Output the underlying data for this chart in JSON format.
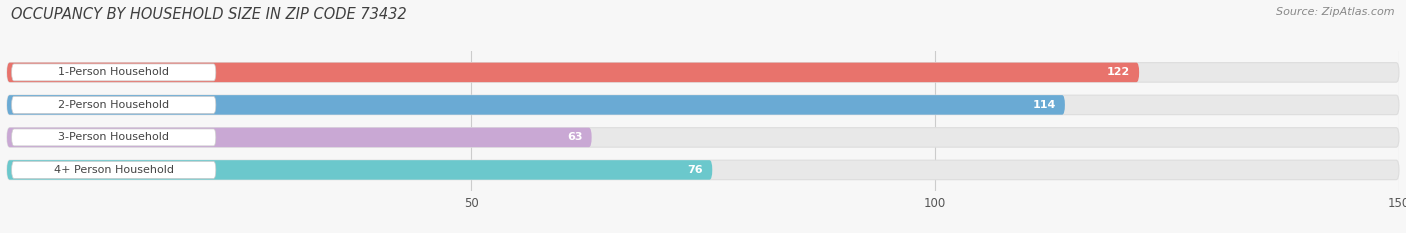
{
  "title": "OCCUPANCY BY HOUSEHOLD SIZE IN ZIP CODE 73432",
  "source": "Source: ZipAtlas.com",
  "categories": [
    "1-Person Household",
    "2-Person Household",
    "3-Person Household",
    "4+ Person Household"
  ],
  "values": [
    122,
    114,
    63,
    76
  ],
  "bar_colors": [
    "#e8736c",
    "#6aaad4",
    "#c9a8d4",
    "#6bc8cc"
  ],
  "xlim": [
    0,
    150
  ],
  "xticks": [
    50,
    100,
    150
  ],
  "bg_color": "#f7f7f7",
  "bar_bg_color": "#e8e8e8",
  "title_fontsize": 10.5,
  "source_fontsize": 8,
  "label_fontsize": 8,
  "value_fontsize": 8,
  "bar_height": 0.6,
  "figsize": [
    14.06,
    2.33
  ]
}
